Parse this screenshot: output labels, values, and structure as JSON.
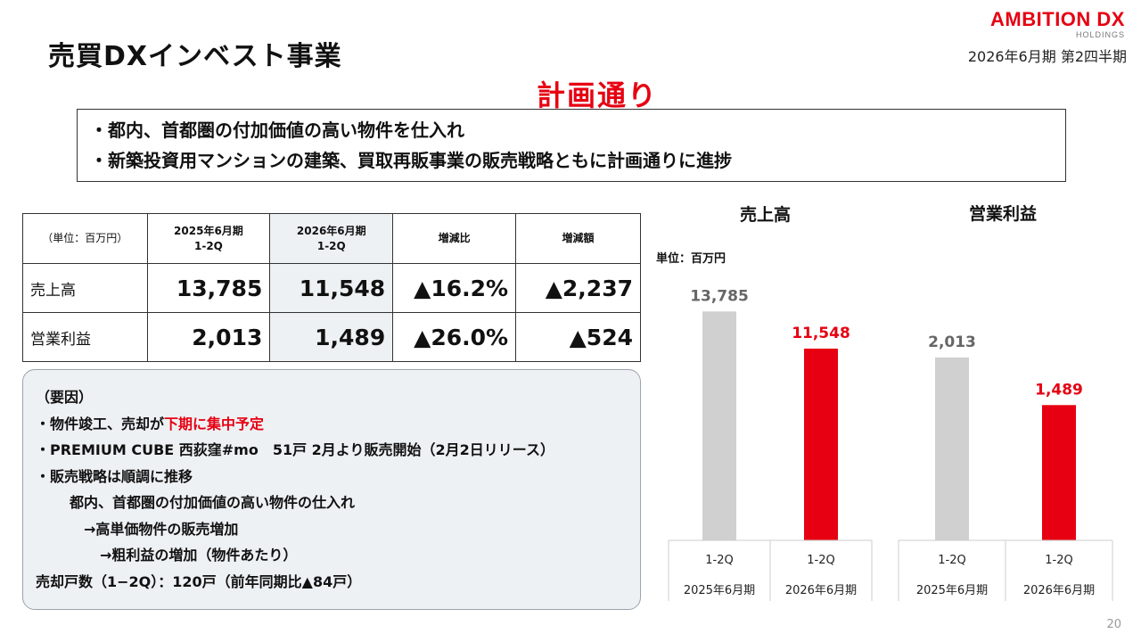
{
  "header": {
    "title": "売買DXインベスト事業",
    "logo_main": "AMBITION DX",
    "logo_sub": "HOLDINGS",
    "period": "2026年6月期 第2四半期"
  },
  "plan_heading": "計画通り",
  "summary": [
    "・都内、首都圏の付加価値の高い物件を仕入れ",
    "・新築投資用マンションの建築、買取再販事業の販売戦略ともに計画通りに進捗"
  ],
  "table": {
    "unit_label": "（単位：百万円）",
    "col_prev": [
      "2025年6月期",
      "1-2Q"
    ],
    "col_curr": [
      "2026年6月期",
      "1-2Q"
    ],
    "col_ratio": "増減比",
    "col_diff": "増減額",
    "rows": [
      {
        "label": "売上高",
        "prev": "13,785",
        "curr": "11,548",
        "ratio": "▲16.2%",
        "diff": "▲2,237"
      },
      {
        "label": "営業利益",
        "prev": "2,013",
        "curr": "1,489",
        "ratio": "▲26.0%",
        "diff": "▲524"
      }
    ]
  },
  "factors": {
    "heading": "（要因）",
    "line1_pre": "・物件竣工、売却が",
    "line1_red": "下期に集中予定",
    "line2": "・PREMIUM CUBE 西荻窪#mo　51戸 2月より販売開始（2月2日リリース）",
    "line3": "・販売戦略は順調に推移",
    "line4": "都内、首都圏の付加価値の高い物件の仕入れ",
    "line5": "→高単価物件の販売増加",
    "line6": "→粗利益の増加（物件あたり）",
    "line7": "売却戸数（1−2Q）：120戸（前年同期比▲84戸）"
  },
  "chart_data": [
    {
      "type": "bar",
      "title": "売上高",
      "unit": "単位：百万円",
      "categories": [
        "1-2Q 2025年6月期",
        "1-2Q 2026年6月期"
      ],
      "values": [
        13785,
        11548
      ],
      "value_labels": [
        "13,785",
        "11,548"
      ],
      "colors": [
        "#d0d0d0",
        "#e60012"
      ],
      "label_colors": [
        "#666666",
        "#e60012"
      ],
      "ylim": [
        0,
        14500
      ]
    },
    {
      "type": "bar",
      "title": "営業利益",
      "categories": [
        "1-2Q 2025年6月期",
        "1-2Q 2026年6月期"
      ],
      "values": [
        2013,
        1489
      ],
      "value_labels": [
        "2,013",
        "1,489"
      ],
      "colors": [
        "#d0d0d0",
        "#e60012"
      ],
      "label_colors": [
        "#666666",
        "#e60012"
      ],
      "ylim": [
        0,
        2650
      ]
    }
  ],
  "axis_labels": {
    "q": "1-2Q",
    "fy2025": "2025年6月期",
    "fy2026": "2026年6月期"
  },
  "page_number": "20"
}
